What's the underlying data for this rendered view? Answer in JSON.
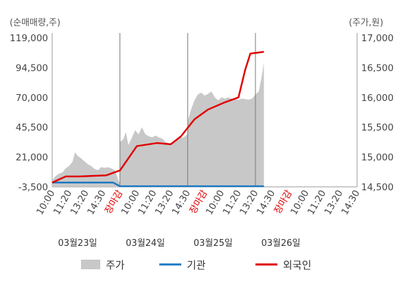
{
  "chart_data": {
    "type": "line",
    "left_axis": {
      "unit_label": "(순매매량,주)",
      "ticks": [
        "119,000",
        "94,500",
        "70,000",
        "45,500",
        "21,000",
        "-3,500"
      ],
      "range": [
        -3500,
        119000
      ]
    },
    "right_axis": {
      "unit_label": "(주가,원)",
      "ticks": [
        "17,000",
        "16,500",
        "16,000",
        "15,500",
        "15,000",
        "14,500"
      ],
      "range": [
        14500,
        17000
      ]
    },
    "x_tick_labels": [
      "10:00",
      "11:20",
      "13:20",
      "14:30",
      "장마감",
      "10:00",
      "11:20",
      "13:20",
      "14:30",
      "장마감",
      "10:00",
      "11:20",
      "13:20",
      "14:30",
      "장마감",
      "10:00",
      "11:20",
      "13:20",
      "14:30"
    ],
    "close_marker": "장마감",
    "dates": [
      "03월23일",
      "03월24일",
      "03월25일",
      "03월26일"
    ],
    "series": [
      {
        "name": "주가",
        "kind": "area",
        "axis": "right",
        "color": "#c8c8c8",
        "points": [
          [
            0,
            14610
          ],
          [
            0.2,
            14680
          ],
          [
            0.4,
            14720
          ],
          [
            0.6,
            14740
          ],
          [
            0.8,
            14810
          ],
          [
            1.0,
            14850
          ],
          [
            1.2,
            14920
          ],
          [
            1.35,
            15080
          ],
          [
            1.5,
            15020
          ],
          [
            1.7,
            14980
          ],
          [
            1.9,
            14930
          ],
          [
            2.1,
            14880
          ],
          [
            2.3,
            14850
          ],
          [
            2.5,
            14800
          ],
          [
            2.7,
            14780
          ],
          [
            2.9,
            14830
          ],
          [
            3.1,
            14820
          ],
          [
            3.3,
            14830
          ],
          [
            3.5,
            14810
          ],
          [
            3.7,
            14780
          ],
          [
            3.9,
            14620
          ],
          [
            4.0,
            14560
          ],
          [
            4.0,
            15250
          ],
          [
            4.2,
            15300
          ],
          [
            4.35,
            15420
          ],
          [
            4.5,
            15200
          ],
          [
            4.7,
            15320
          ],
          [
            4.9,
            15450
          ],
          [
            5.1,
            15380
          ],
          [
            5.3,
            15500
          ],
          [
            5.5,
            15380
          ],
          [
            5.7,
            15350
          ],
          [
            5.9,
            15330
          ],
          [
            6.1,
            15360
          ],
          [
            6.3,
            15330
          ],
          [
            6.5,
            15310
          ],
          [
            6.7,
            15250
          ],
          [
            6.9,
            15230
          ],
          [
            7.1,
            15240
          ],
          [
            7.3,
            15280
          ],
          [
            7.5,
            15350
          ],
          [
            7.7,
            15320
          ],
          [
            7.9,
            15360
          ],
          [
            8.0,
            15400
          ],
          [
            8.0,
            15600
          ],
          [
            8.2,
            15800
          ],
          [
            8.4,
            15950
          ],
          [
            8.6,
            16050
          ],
          [
            8.8,
            16080
          ],
          [
            9.0,
            16030
          ],
          [
            9.2,
            16060
          ],
          [
            9.4,
            16100
          ],
          [
            9.6,
            16000
          ],
          [
            9.8,
            15950
          ],
          [
            10.0,
            16000
          ],
          [
            10.2,
            15980
          ],
          [
            10.4,
            16000
          ],
          [
            10.6,
            15980
          ],
          [
            10.8,
            15970
          ],
          [
            11.0,
            15960
          ],
          [
            11.2,
            15980
          ],
          [
            11.4,
            15970
          ],
          [
            11.6,
            15960
          ],
          [
            11.8,
            15980
          ],
          [
            12.0,
            16050
          ],
          [
            12.2,
            16100
          ],
          [
            12.4,
            16400
          ],
          [
            12.5,
            16590
          ]
        ]
      },
      {
        "name": "기관",
        "kind": "line",
        "axis": "left",
        "color": "#1a78c2",
        "points": [
          [
            0,
            0
          ],
          [
            3.6,
            0
          ],
          [
            4.0,
            -3000
          ],
          [
            12.5,
            -3000
          ]
        ]
      },
      {
        "name": "외국인",
        "kind": "line",
        "axis": "left",
        "color": "#e00000",
        "points": [
          [
            0,
            0
          ],
          [
            0.8,
            5000
          ],
          [
            1.6,
            5000
          ],
          [
            3.2,
            6000
          ],
          [
            4.0,
            10000
          ],
          [
            5.0,
            30000
          ],
          [
            6.2,
            32500
          ],
          [
            7.0,
            31500
          ],
          [
            7.6,
            38000
          ],
          [
            8.4,
            52000
          ],
          [
            9.2,
            60000
          ],
          [
            10.2,
            66000
          ],
          [
            11.0,
            70000
          ],
          [
            11.4,
            93000
          ],
          [
            11.7,
            106000
          ],
          [
            12.5,
            107500
          ]
        ]
      }
    ],
    "legend": [
      {
        "label": "주가",
        "swatch": "area",
        "color": "#c8c8c8"
      },
      {
        "label": "기관",
        "swatch": "line",
        "color": "#1a78c2"
      },
      {
        "label": "외국인",
        "swatch": "line",
        "color": "#e00000"
      }
    ],
    "grid": false,
    "legend_position": "bottom"
  }
}
